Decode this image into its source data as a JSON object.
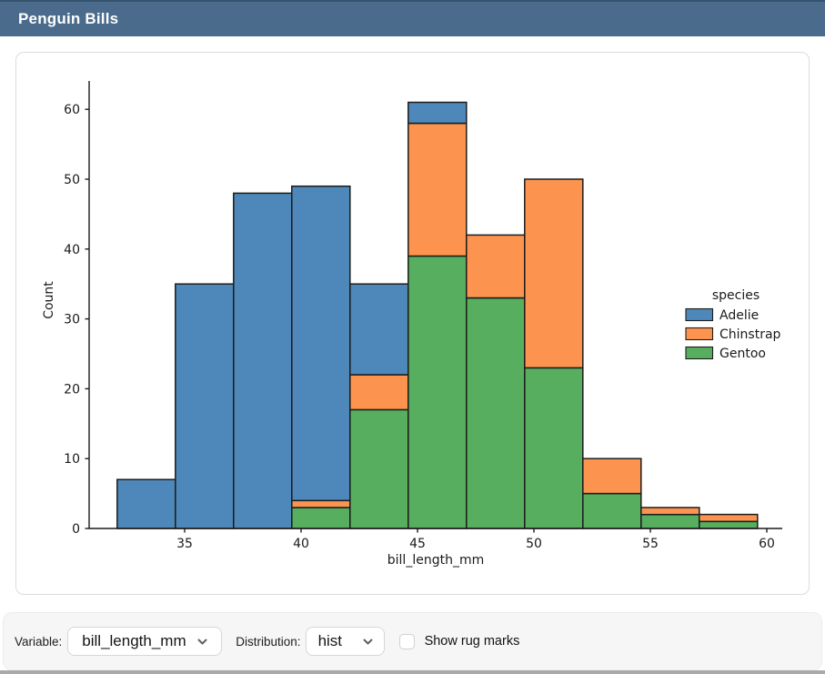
{
  "window": {
    "title": "Penguin Bills"
  },
  "colors": {
    "header_bg": "#4a6b8c",
    "header_edge": "#35536f",
    "panel_bg": "#f6f6f7",
    "adelie_blue": "#4e88ba",
    "chinstrap_orange": "#fc9450",
    "gentoo_green": "#57ae5e"
  },
  "controls": {
    "variable_label": "Variable:",
    "variable_value": "bill_length_mm",
    "distribution_label": "Distribution:",
    "distribution_value": "hist",
    "rug_label": "Show rug marks",
    "rug_checked": false
  },
  "chart_data": {
    "type": "bar",
    "subtype": "stacked-histogram",
    "title": "",
    "xlabel": "bill_length_mm",
    "ylabel": "Count",
    "legend_title": "species",
    "legend_position": "center-right",
    "grid": false,
    "xlim": [
      30.9,
      60.6
    ],
    "ylim": [
      0,
      64
    ],
    "x_ticks": [
      35,
      40,
      45,
      50,
      55,
      60
    ],
    "y_ticks": [
      0,
      10,
      20,
      30,
      40,
      50,
      60
    ],
    "bin_edges": [
      32.1,
      34.6,
      37.1,
      39.6,
      42.1,
      44.6,
      47.1,
      49.6,
      52.1,
      54.6,
      57.1,
      59.6
    ],
    "stack_order": [
      "Gentoo",
      "Chinstrap",
      "Adelie"
    ],
    "series": [
      {
        "name": "Adelie",
        "color": "#4e88ba",
        "values": [
          7,
          35,
          48,
          45,
          13,
          3,
          0,
          0,
          0,
          0,
          0
        ]
      },
      {
        "name": "Chinstrap",
        "color": "#fc9450",
        "values": [
          0,
          0,
          0,
          1,
          5,
          19,
          9,
          27,
          5,
          1,
          1
        ]
      },
      {
        "name": "Gentoo",
        "color": "#57ae5e",
        "values": [
          0,
          0,
          0,
          3,
          17,
          39,
          33,
          23,
          5,
          2,
          1
        ]
      }
    ],
    "totals": [
      7,
      35,
      48,
      49,
      35,
      61,
      42,
      50,
      10,
      3,
      2
    ]
  }
}
